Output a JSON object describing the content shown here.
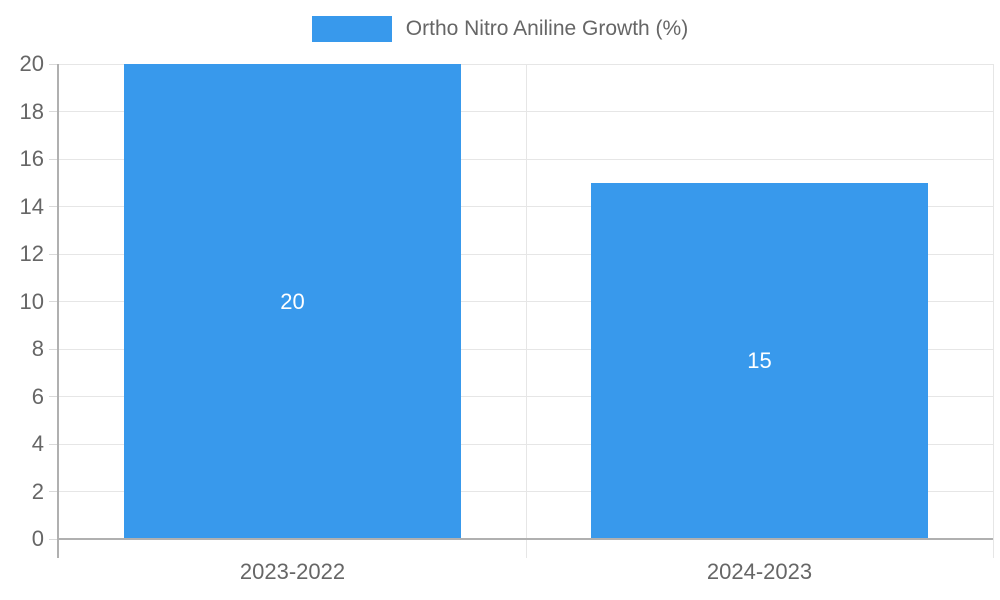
{
  "chart_data": {
    "type": "bar",
    "title": "Ortho Nitro Aniline Growth (%)",
    "categories": [
      "2023-2022",
      "2024-2023"
    ],
    "series": [
      {
        "name": "Ortho Nitro Aniline Growth (%)",
        "values": [
          20,
          15
        ],
        "color": "#3899ec"
      }
    ],
    "value_labels": [
      "20",
      "15"
    ],
    "xlabel": "",
    "ylabel": "",
    "ylim": [
      0,
      20
    ],
    "ytick_step": 2,
    "yticks": [
      0,
      2,
      4,
      6,
      8,
      10,
      12,
      14,
      16,
      18,
      20
    ],
    "grid": true,
    "legend_position": "top"
  },
  "legend": {
    "label": "Ortho Nitro Aniline Growth (%)",
    "swatch_color": "#3899ec"
  },
  "colors": {
    "bar": "#3899ec",
    "axis_line": "#b0b0b0",
    "grid_line": "#e6e6e6",
    "tick_line": "#d9d9d9",
    "axis_label": "#666666",
    "value_label": "#ffffff",
    "background": "#ffffff"
  }
}
